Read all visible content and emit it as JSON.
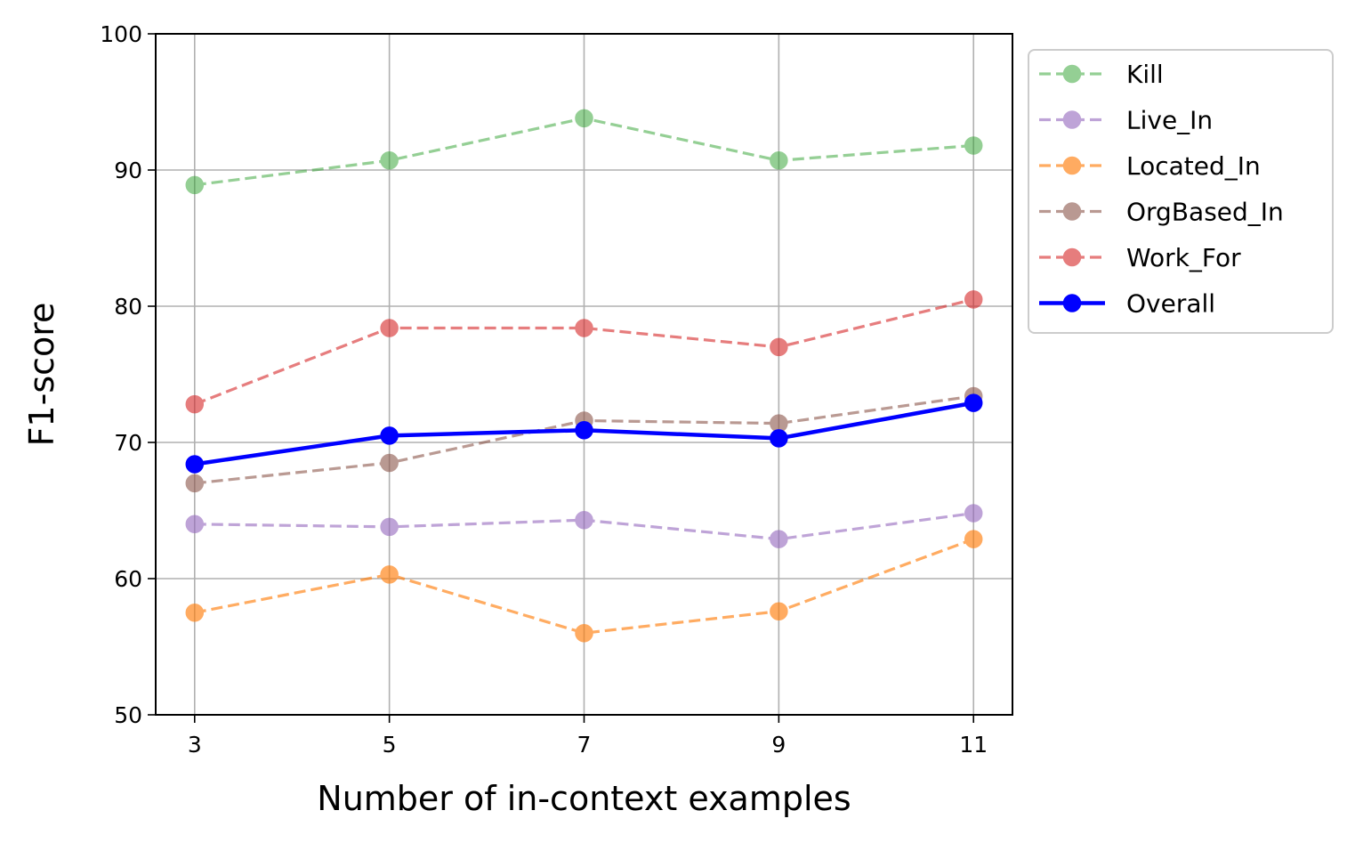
{
  "chart_data": {
    "type": "line",
    "title": "",
    "xlabel": "Number of in-context examples",
    "ylabel": "F1-score",
    "x": [
      3,
      5,
      7,
      9,
      11
    ],
    "x_tick_labels": [
      "3",
      "5",
      "7",
      "9",
      "11"
    ],
    "xlim": [
      2.6,
      11.4
    ],
    "ylim": [
      50,
      100
    ],
    "y_ticks": [
      50,
      60,
      70,
      80,
      90,
      100
    ],
    "y_tick_labels": [
      "50",
      "60",
      "70",
      "80",
      "90",
      "100"
    ],
    "grid": true,
    "legend_position": "outside-upper-right",
    "series": [
      {
        "name": "Kill",
        "values": [
          88.9,
          90.7,
          93.8,
          90.7,
          91.8
        ],
        "color": "#2ca02c",
        "style": "dashed",
        "alpha": 0.5
      },
      {
        "name": "Live_In",
        "values": [
          64.0,
          63.8,
          64.3,
          62.9,
          64.8
        ],
        "color": "#9467bd",
        "style": "dashed",
        "alpha": 0.6
      },
      {
        "name": "Located_In",
        "values": [
          57.5,
          60.3,
          56.0,
          57.6,
          62.9
        ],
        "color": "#ff7f0e",
        "style": "dashed",
        "alpha": 0.65
      },
      {
        "name": "OrgBased_In",
        "values": [
          67.0,
          68.5,
          71.6,
          71.4,
          73.4
        ],
        "color": "#8c564b",
        "style": "dashed",
        "alpha": 0.6
      },
      {
        "name": "Work_For",
        "values": [
          72.8,
          78.4,
          78.4,
          77.0,
          80.5
        ],
        "color": "#d62728",
        "style": "dashed",
        "alpha": 0.6
      },
      {
        "name": "Overall",
        "values": [
          68.4,
          70.5,
          70.9,
          70.3,
          72.9
        ],
        "color": "#0000ff",
        "style": "solid",
        "alpha": 1.0
      }
    ]
  }
}
